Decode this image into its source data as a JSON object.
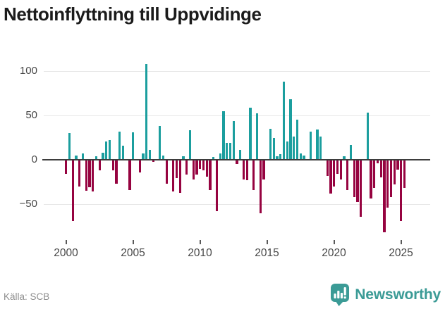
{
  "title": "Nettoinflyttning till Uppvidinge",
  "source": "Källa: SCB",
  "logo": {
    "text": "Newsworthy"
  },
  "colors": {
    "positive": "#1b9e9e",
    "negative": "#960340",
    "grid": "#e7e7e7",
    "zero_axis": "#3d3d3d",
    "axis_text": "#474747",
    "title_text": "#1b1b1b",
    "source_text": "#8f8f8f",
    "logo_teal": "#3b9b96"
  },
  "chart_data": {
    "type": "bar",
    "title": "Nettoinflyttning till Uppvidinge",
    "ylabel": "",
    "xlabel": "",
    "frequency": "quarterly",
    "start": "2000-Q1",
    "end": "2025-Q2",
    "ylim": [
      -90,
      118
    ],
    "grid": "horizontal",
    "y_ticks": [
      100,
      50,
      0,
      -50
    ],
    "y_tick_labels": [
      "100",
      "50",
      "0",
      "−50"
    ],
    "x_tick_labels": [
      "2000",
      "2005",
      "2010",
      "2015",
      "2020",
      "2025"
    ],
    "values": [
      {
        "year": 2000,
        "q": [
          -16,
          30,
          -69,
          5
        ]
      },
      {
        "year": 2001,
        "q": [
          -30,
          7,
          -35,
          -31
        ]
      },
      {
        "year": 2002,
        "q": [
          -36,
          4,
          -12,
          8
        ]
      },
      {
        "year": 2003,
        "q": [
          21,
          22,
          -12,
          -27
        ]
      },
      {
        "year": 2004,
        "q": [
          32,
          16,
          0,
          -34
        ]
      },
      {
        "year": 2005,
        "q": [
          31,
          0,
          -14,
          7
        ]
      },
      {
        "year": 2006,
        "q": [
          108,
          11,
          -2,
          0
        ]
      },
      {
        "year": 2007,
        "q": [
          38,
          5,
          -27,
          0
        ]
      },
      {
        "year": 2008,
        "q": [
          -36,
          -21,
          -37,
          4
        ]
      },
      {
        "year": 2009,
        "q": [
          -17,
          33,
          -22,
          -17
        ]
      },
      {
        "year": 2010,
        "q": [
          -10,
          -12,
          -19,
          -34
        ]
      },
      {
        "year": 2011,
        "q": [
          3,
          -58,
          7,
          55
        ]
      },
      {
        "year": 2012,
        "q": [
          19,
          19,
          44,
          -5
        ]
      },
      {
        "year": 2013,
        "q": [
          11,
          -22,
          -23,
          59
        ]
      },
      {
        "year": 2014,
        "q": [
          -34,
          52,
          -60,
          -22
        ]
      },
      {
        "year": 2015,
        "q": [
          0,
          35,
          25,
          4
        ]
      },
      {
        "year": 2016,
        "q": [
          6,
          88,
          21,
          68
        ]
      },
      {
        "year": 2017,
        "q": [
          26,
          45,
          7,
          5
        ]
      },
      {
        "year": 2018,
        "q": [
          0,
          32,
          0,
          34
        ]
      },
      {
        "year": 2019,
        "q": [
          26,
          0,
          -18,
          -38
        ]
      },
      {
        "year": 2020,
        "q": [
          -30,
          -16,
          -22,
          4
        ]
      },
      {
        "year": 2021,
        "q": [
          -34,
          17,
          -42,
          -48
        ]
      },
      {
        "year": 2022,
        "q": [
          -64,
          0,
          53,
          -44
        ]
      },
      {
        "year": 2023,
        "q": [
          -32,
          -4,
          -20,
          -82
        ]
      },
      {
        "year": 2024,
        "q": [
          -54,
          -42,
          -28,
          -11
        ]
      },
      {
        "year": 2025,
        "q": [
          -69,
          -32
        ]
      }
    ]
  }
}
